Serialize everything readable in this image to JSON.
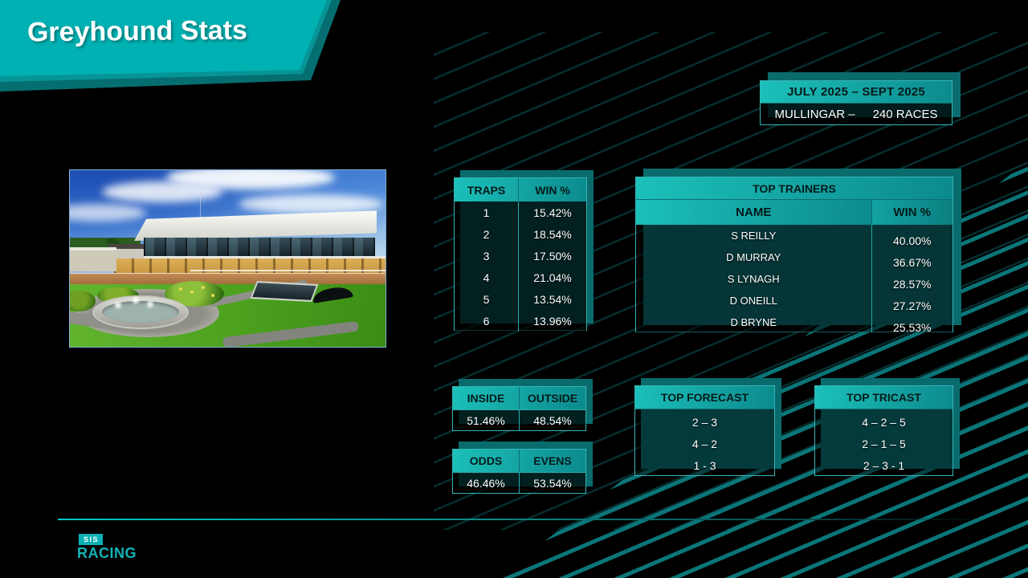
{
  "title": "Greyhound Stats",
  "period_box": {
    "period": "JULY 2025 –  SEPT 2025",
    "venue": "MULLINGAR –",
    "races": "240 RACES"
  },
  "traps_table": {
    "headers": [
      "TRAPS",
      "WIN %"
    ],
    "rows": [
      [
        "1",
        "15.42%"
      ],
      [
        "2",
        "18.54%"
      ],
      [
        "3",
        "17.50%"
      ],
      [
        "4",
        "21.04%"
      ],
      [
        "5",
        "13.54%"
      ],
      [
        "6",
        "13.96%"
      ]
    ]
  },
  "trainers_table": {
    "title": "TOP TRAINERS",
    "headers": [
      "NAME",
      "WIN %"
    ],
    "rows": [
      [
        "S REILLY",
        "40.00%"
      ],
      [
        "D MURRAY",
        "36.67%"
      ],
      [
        "S LYNAGH",
        "28.57%"
      ],
      [
        "D ONEILL",
        "27.27%"
      ],
      [
        "D BRYNE",
        "25.53%"
      ]
    ]
  },
  "inside_outside": {
    "headers": [
      "INSIDE",
      "OUTSIDE"
    ],
    "values": [
      "51.46%",
      "48.54%"
    ]
  },
  "odds_evens": {
    "headers": [
      "ODDS",
      "EVENS"
    ],
    "values": [
      "46.46%",
      "53.54%"
    ]
  },
  "top_forecast": {
    "title": "TOP FORECAST",
    "rows": [
      "2 – 3",
      "4 – 2",
      "1 - 3"
    ]
  },
  "top_tricast": {
    "title": "TOP TRICAST",
    "rows": [
      "4 – 2 – 5",
      "2 – 1 – 5",
      "2 – 3 - 1"
    ]
  },
  "logo": {
    "sis": "SIS",
    "racing": "RACING"
  },
  "colors": {
    "accent": "#00b1b3",
    "accent_dark": "#0a6b6d",
    "background": "#000000",
    "header_gradient_start": "#1cc0ba",
    "header_gradient_end": "#0c8a8c",
    "streak": "#0b7578"
  }
}
